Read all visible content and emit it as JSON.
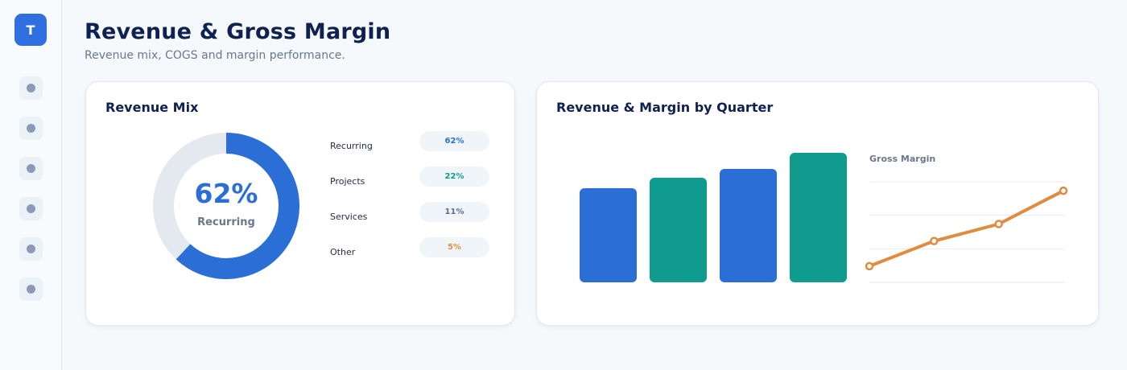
{
  "sidebar": {
    "logo_letter": "T",
    "items": [
      {
        "icon": "nav-dot-icon"
      },
      {
        "icon": "nav-dot-icon"
      },
      {
        "icon": "nav-dot-icon"
      },
      {
        "icon": "nav-dot-icon"
      },
      {
        "icon": "nav-dot-icon"
      },
      {
        "icon": "nav-dot-icon"
      }
    ]
  },
  "header": {
    "title": "Revenue & Gross Margin",
    "subtitle": "Revenue mix, COGS and margin performance."
  },
  "revenue_mix": {
    "title": "Revenue Mix",
    "donut_value": "62%",
    "donut_label": "Recurring",
    "legend": [
      {
        "label": "Recurring",
        "value": "62%",
        "color": "#2a6ed6"
      },
      {
        "label": "Projects",
        "value": "22%",
        "color": "#0f9b8e"
      },
      {
        "label": "Services",
        "value": "11%",
        "color": "#5b6b9a"
      },
      {
        "label": "Other",
        "value": "5%",
        "color": "#e08b3e"
      }
    ]
  },
  "quarter_chart": {
    "title": "Revenue & Margin by Quarter",
    "line_title": "Gross Margin"
  },
  "colors": {
    "blue": "#2a6ed6",
    "teal": "#0f9b8e",
    "orange": "#e08b3e",
    "track": "#e4e9ef"
  },
  "chart_data": [
    {
      "type": "pie",
      "categories": [
        "Recurring",
        "Projects",
        "Services",
        "Other"
      ],
      "values": [
        62,
        22,
        11,
        5
      ],
      "title": "Revenue Mix"
    },
    {
      "type": "bar",
      "title": "Revenue & Margin by Quarter",
      "categories": [
        "",
        "",
        "",
        ""
      ],
      "values": [
        117,
        130,
        141,
        161
      ],
      "ylim": [
        0,
        175
      ]
    },
    {
      "type": "line",
      "title": "Gross Margin",
      "x": [
        1,
        2,
        3,
        4
      ],
      "values": [
        10,
        41,
        62,
        103
      ],
      "ylim": [
        0,
        124
      ],
      "grid": true
    }
  ]
}
